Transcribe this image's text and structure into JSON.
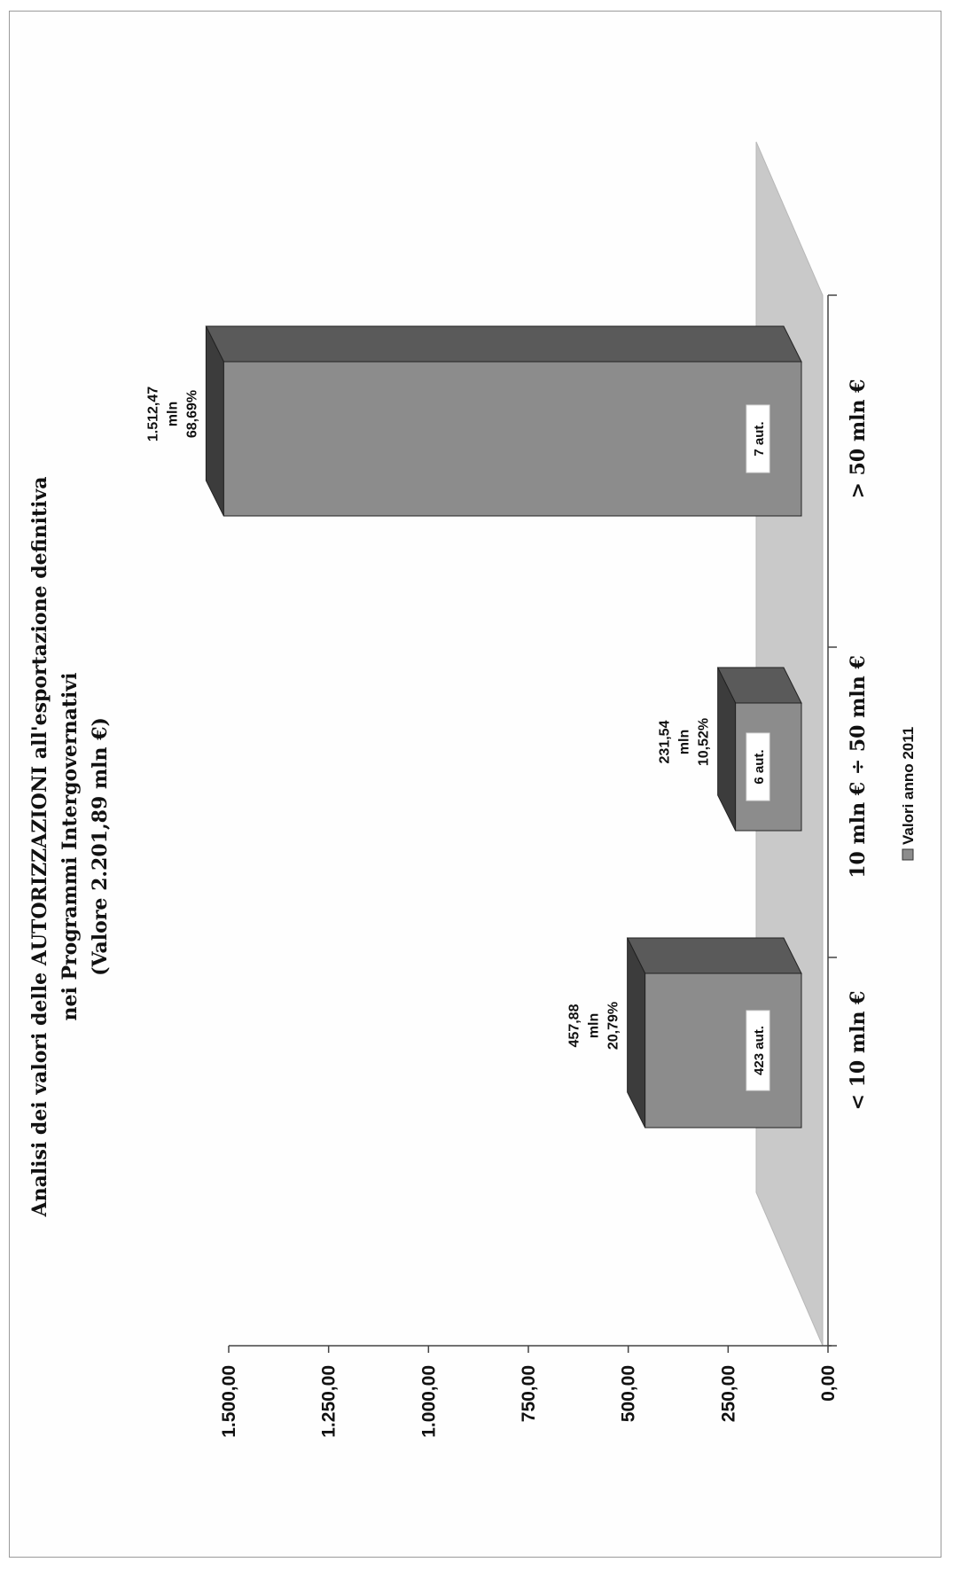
{
  "chart_data": {
    "type": "bar",
    "title_lines": [
      "Analisi dei valori delle AUTORIZZAZIONI all'esportazione definitiva",
      "nei Programmi Intergovernativi",
      "(Valore 2.201,89 mln €)"
    ],
    "categories": [
      "< 10 mln €",
      "10 mln € ÷ 50 mln €",
      "> 50 mln €"
    ],
    "series": [
      {
        "name": "Valori anno 2011",
        "values": [
          457.88,
          231.54,
          1512.47
        ]
      }
    ],
    "value_labels": [
      [
        "457,88",
        "mln",
        "20,79%"
      ],
      [
        "231,54",
        "mln",
        "10,52%"
      ],
      [
        "1.512,47",
        "mln",
        "68,69%"
      ]
    ],
    "bar_tags": [
      "423 aut.",
      "6 aut.",
      "7 aut."
    ],
    "y_ticks": [
      "0,00",
      "250,00",
      "500,00",
      "750,00",
      "1.000,00",
      "1.250,00",
      "1.500,00"
    ],
    "ylim": [
      0,
      1500
    ],
    "legend_position": "bottom",
    "orientation": "rotated 90° counter-clockwise (page landscape)",
    "colors": {
      "bar_front": "#8c8c8c",
      "bar_side": "#5a5a5a",
      "bar_top": "#3c3c3c",
      "floor": "#c7c7c7"
    }
  }
}
